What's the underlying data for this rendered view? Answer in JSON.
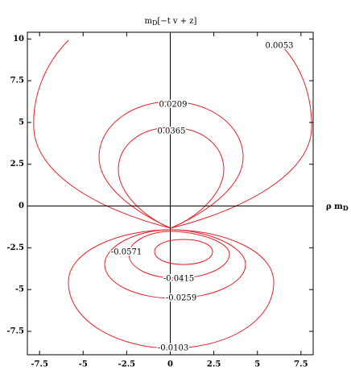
{
  "chart_data": {
    "type": "contour",
    "title": "m",
    "title_subscript": "D",
    "title_rest": "[−t v + z]",
    "x_label": "ρ m",
    "x_label_subscript": "D",
    "xlim": [
      -8.2,
      8.2
    ],
    "ylim": [
      -8.9,
      10.4
    ],
    "xticks": [
      -7.5,
      -5,
      -2.5,
      0,
      2.5,
      5,
      7.5
    ],
    "yticks": [
      -7.5,
      -5,
      -2.5,
      0,
      2.5,
      5,
      7.5,
      10
    ],
    "color": "#e8202a",
    "levels": [
      0.0053,
      0.0209,
      0.0365,
      -0.0571,
      -0.0415,
      -0.0259,
      -0.0103
    ]
  }
}
